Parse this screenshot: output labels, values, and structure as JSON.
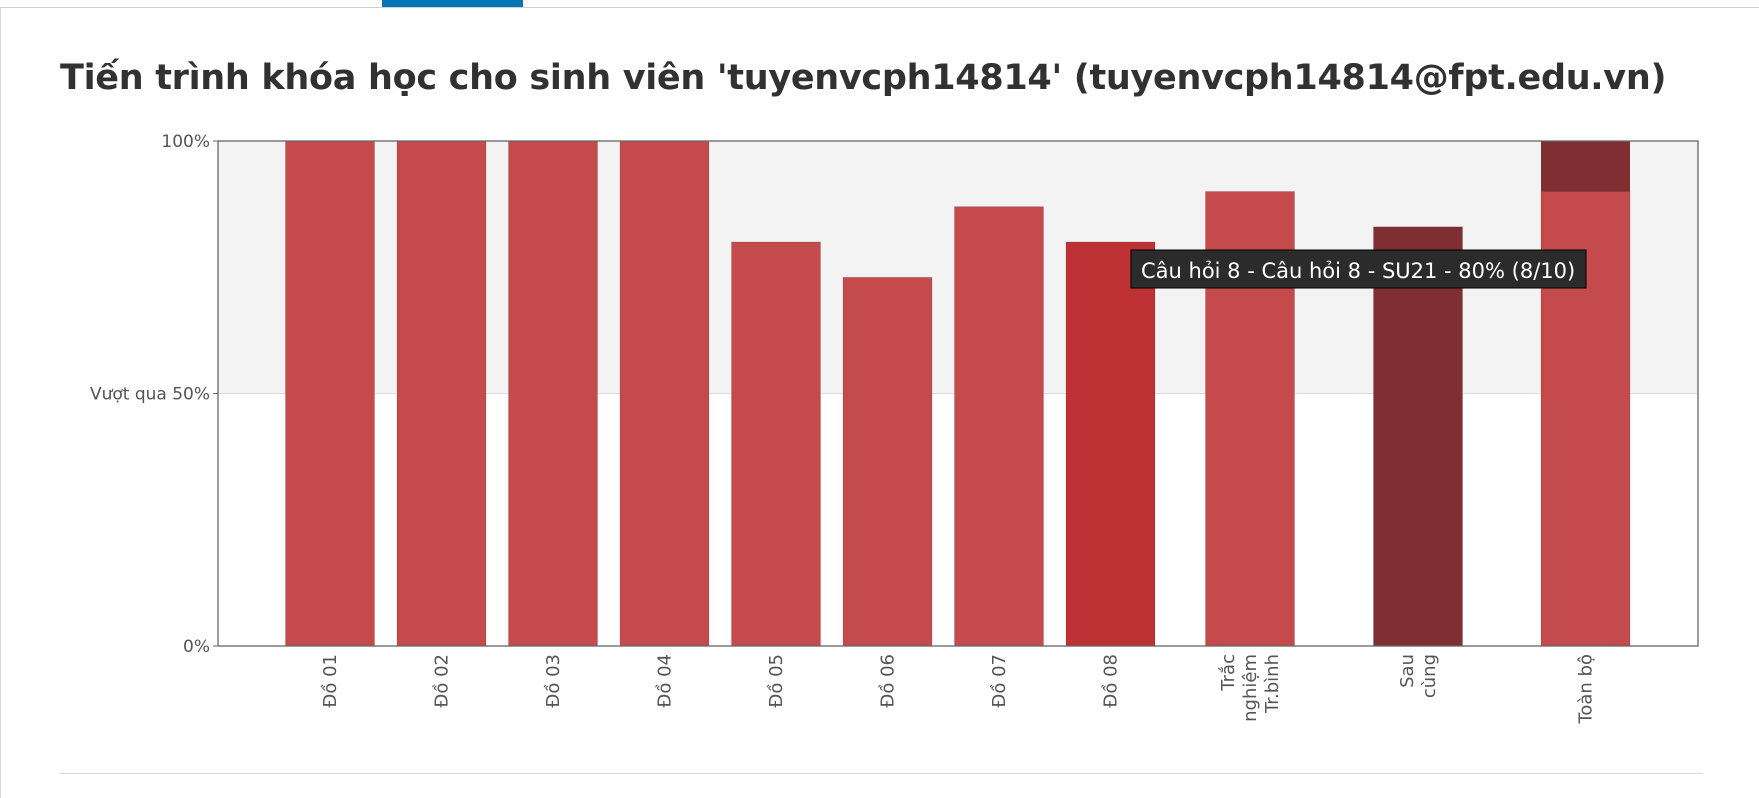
{
  "header": {
    "title": "Tiến trình khóa học cho sinh viên 'tuyenvcph14814' (tuyenvcph14814@fpt.edu.vn)"
  },
  "colors": {
    "bar": "#c44a4c",
    "bar_hover": "#be3134",
    "bar_dark": "#7f2f32",
    "pass_region": "#f3f3f3",
    "tab_accent": "#0075b4"
  },
  "chart_data": {
    "type": "bar",
    "title": "",
    "xlabel": "",
    "ylabel": "",
    "ylim": [
      0,
      100
    ],
    "y_ticks": [
      {
        "value": 0,
        "label": "0%"
      },
      {
        "value": 50,
        "label": "Vượt qua 50%"
      },
      {
        "value": 100,
        "label": "100%"
      }
    ],
    "pass_threshold": 50,
    "grid": false,
    "bars": [
      {
        "label": [
          "Đồ 01"
        ],
        "value": 100,
        "style": "normal"
      },
      {
        "label": [
          "Đồ 02"
        ],
        "value": 100,
        "style": "normal"
      },
      {
        "label": [
          "Đồ 03"
        ],
        "value": 100,
        "style": "normal"
      },
      {
        "label": [
          "Đồ 04"
        ],
        "value": 100,
        "style": "normal"
      },
      {
        "label": [
          "Đồ 05"
        ],
        "value": 80,
        "style": "normal"
      },
      {
        "label": [
          "Đồ 06"
        ],
        "value": 73,
        "style": "normal"
      },
      {
        "label": [
          "Đồ 07"
        ],
        "value": 87,
        "style": "normal"
      },
      {
        "label": [
          "Đồ 08"
        ],
        "value": 80,
        "style": "hover"
      },
      {
        "label": [
          "Trắc",
          "nghiệm",
          "Tr.bình"
        ],
        "value": 90,
        "style": "normal"
      },
      {
        "label": [
          "Sau",
          "cùng"
        ],
        "value": 83,
        "style": "dark"
      },
      {
        "label": [
          "Toàn bộ"
        ],
        "value": 90,
        "style": "normal",
        "stack_value": 10
      }
    ],
    "tooltip": {
      "bar_index": 7,
      "text": "Câu hỏi 8 - Câu hỏi 8 - SU21 - 80% (8/10)"
    }
  }
}
